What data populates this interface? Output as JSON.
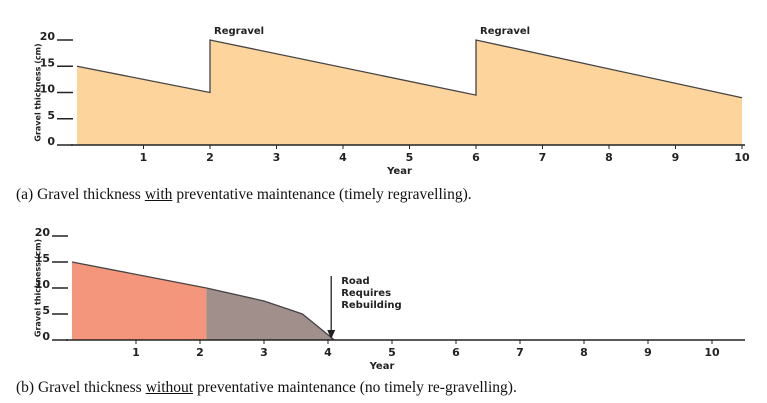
{
  "chart_data": [
    {
      "type": "area",
      "xlabel": "Year",
      "ylabel": "Gravel thickness (cm)",
      "xlim": [
        0,
        10
      ],
      "ylim": [
        0,
        20
      ],
      "xticks": [
        1,
        2,
        3,
        4,
        5,
        6,
        7,
        8,
        9,
        10
      ],
      "yticks": [
        0,
        5,
        10,
        15,
        20
      ],
      "series": [
        {
          "color": "#fdd49c",
          "x": [
            0,
            2,
            2,
            6,
            6,
            10
          ],
          "values": [
            15,
            10,
            20,
            9.5,
            20,
            9
          ]
        }
      ],
      "annotations": [
        {
          "text": [
            "Regravel"
          ],
          "x": 2
        },
        {
          "text": [
            "Regravel"
          ],
          "x": 6
        }
      ],
      "caption": [
        "(a) Gravel thickness",
        "with",
        "preventative maintenance (timely regravelling)."
      ]
    },
    {
      "type": "area",
      "xlabel": "Year",
      "ylabel": "Gravel thickness (cm)",
      "xlim": [
        0,
        10
      ],
      "ylim": [
        0,
        20
      ],
      "xticks": [
        1,
        2,
        3,
        4,
        5,
        6,
        7,
        8,
        9,
        10
      ],
      "yticks": [
        0,
        5,
        10,
        15,
        20
      ],
      "series": [
        {
          "color": "#f4967b",
          "x": [
            0,
            2.1
          ],
          "values": [
            15,
            10
          ]
        },
        {
          "color": "#a08f8a",
          "x": [
            2.1,
            3,
            3.6,
            4.1
          ],
          "values": [
            10,
            7.5,
            5,
            0
          ]
        }
      ],
      "annotations": [
        {
          "text": [
            "Road",
            "Requires",
            "Rebuilding"
          ],
          "x": 4.05,
          "arrow": true
        }
      ],
      "caption": [
        "(b) Gravel thickness",
        "without",
        "preventative maintenance (no timely re-gravelling)."
      ]
    }
  ]
}
